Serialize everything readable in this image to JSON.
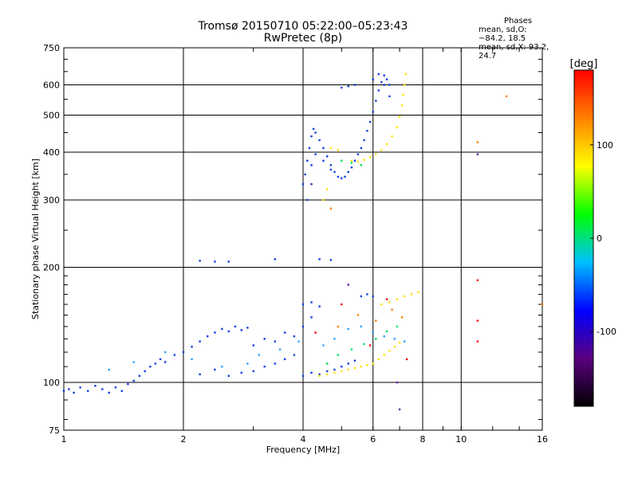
{
  "header": {
    "title_line1": "Tromsø 20150710 05:22:00–05:23:43",
    "title_line2": "RwPretec (8p)"
  },
  "phases": {
    "title": "Phases",
    "line_o": "mean, sd,O: −84.2, 18.5",
    "line_x": "mean, sd,X:  93.2, 24.7"
  },
  "chart_data": {
    "type": "scatter",
    "xlabel": "Frequency [MHz]",
    "ylabel": "Stationary phase Virtual Height [km]",
    "x_scale": "log",
    "y_scale": "log",
    "xlim": [
      1,
      16
    ],
    "ylim": [
      75,
      750
    ],
    "x_ticks": [
      1,
      2,
      4,
      6,
      8,
      10,
      16
    ],
    "x_tick_labels": [
      "1",
      "2",
      "4",
      "6",
      "8",
      "10",
      "16"
    ],
    "y_ticks": [
      75,
      100,
      200,
      300,
      400,
      500,
      600,
      750
    ],
    "y_tick_labels": [
      "75",
      "100",
      "200",
      "300",
      "400",
      "500",
      "600",
      "750"
    ],
    "grid": true,
    "colorbar": {
      "label": "[deg]",
      "range": [
        -180,
        180
      ],
      "ticks": [
        100,
        0,
        -100
      ],
      "tick_labels": [
        "100",
        "0",
        "-100"
      ],
      "colors": [
        "#000000",
        "#5a0080",
        "#0000ff",
        "#00c0ff",
        "#00ff00",
        "#ffff00",
        "#ff8000",
        "#ff0000"
      ]
    },
    "series": [
      {
        "color": "#1040e0",
        "points": [
          [
            1.0,
            95
          ],
          [
            1.03,
            96
          ],
          [
            1.06,
            94
          ],
          [
            1.1,
            97
          ],
          [
            1.15,
            95
          ],
          [
            1.2,
            98
          ],
          [
            1.25,
            96
          ],
          [
            1.3,
            94
          ],
          [
            1.35,
            97
          ],
          [
            1.4,
            95
          ],
          [
            1.45,
            99
          ],
          [
            1.5,
            101
          ],
          [
            1.55,
            104
          ],
          [
            1.6,
            107
          ],
          [
            1.65,
            110
          ],
          [
            1.7,
            112
          ],
          [
            1.75,
            115
          ],
          [
            1.8,
            113
          ],
          [
            1.9,
            118
          ],
          [
            2.0,
            120
          ],
          [
            2.1,
            124
          ],
          [
            2.2,
            128
          ],
          [
            2.3,
            132
          ],
          [
            2.4,
            135
          ],
          [
            2.5,
            138
          ],
          [
            2.6,
            136
          ],
          [
            2.7,
            140
          ],
          [
            2.8,
            137
          ],
          [
            2.9,
            139
          ],
          [
            2.2,
            105
          ],
          [
            2.4,
            108
          ],
          [
            2.6,
            104
          ],
          [
            2.8,
            106
          ],
          [
            3.0,
            107
          ],
          [
            3.2,
            110
          ],
          [
            3.4,
            112
          ],
          [
            3.6,
            115
          ],
          [
            3.8,
            118
          ],
          [
            4.0,
            104
          ],
          [
            4.2,
            106
          ],
          [
            4.4,
            105
          ],
          [
            4.6,
            107
          ],
          [
            4.8,
            108
          ],
          [
            5.0,
            110
          ],
          [
            5.2,
            112
          ],
          [
            5.4,
            114
          ],
          [
            3.0,
            125
          ],
          [
            3.2,
            130
          ],
          [
            3.4,
            128
          ],
          [
            3.6,
            135
          ],
          [
            3.8,
            132
          ],
          [
            4.0,
            140
          ],
          [
            4.2,
            148
          ],
          [
            4.4,
            158
          ],
          [
            4.2,
            162
          ],
          [
            4.0,
            160
          ],
          [
            5.6,
            168
          ],
          [
            5.8,
            170
          ],
          [
            6.0,
            168
          ],
          [
            2.2,
            208
          ],
          [
            2.4,
            207
          ],
          [
            2.6,
            207
          ],
          [
            3.4,
            210
          ],
          [
            4.4,
            210
          ],
          [
            4.7,
            209
          ]
        ]
      },
      {
        "color": "#1040e0",
        "points": [
          [
            4.0,
            330
          ],
          [
            4.05,
            350
          ],
          [
            4.1,
            380
          ],
          [
            4.15,
            410
          ],
          [
            4.2,
            440
          ],
          [
            4.25,
            460
          ],
          [
            4.3,
            450
          ],
          [
            4.4,
            430
          ],
          [
            4.5,
            410
          ],
          [
            4.6,
            390
          ],
          [
            4.7,
            370
          ],
          [
            4.8,
            355
          ],
          [
            4.9,
            345
          ],
          [
            5.0,
            342
          ],
          [
            5.1,
            345
          ],
          [
            5.2,
            355
          ],
          [
            5.3,
            365
          ],
          [
            5.4,
            380
          ],
          [
            5.5,
            395
          ],
          [
            5.6,
            410
          ],
          [
            5.7,
            430
          ],
          [
            5.8,
            455
          ],
          [
            5.9,
            480
          ],
          [
            6.0,
            510
          ],
          [
            6.1,
            545
          ],
          [
            6.2,
            580
          ],
          [
            6.3,
            610
          ],
          [
            6.4,
            635
          ],
          [
            6.5,
            620
          ],
          [
            6.6,
            600
          ],
          [
            5.0,
            590
          ],
          [
            5.2,
            595
          ],
          [
            5.4,
            600
          ],
          [
            4.1,
            300
          ],
          [
            4.2,
            370
          ],
          [
            4.3,
            395
          ],
          [
            4.5,
            380
          ],
          [
            4.7,
            360
          ],
          [
            6.0,
            620
          ],
          [
            6.2,
            640
          ],
          [
            6.4,
            600
          ],
          [
            6.6,
            560
          ]
        ]
      },
      {
        "color": "#30a0ff",
        "points": [
          [
            1.3,
            108
          ],
          [
            1.5,
            113
          ],
          [
            1.8,
            120
          ],
          [
            2.1,
            115
          ],
          [
            2.5,
            110
          ],
          [
            2.9,
            112
          ],
          [
            3.1,
            118
          ],
          [
            3.5,
            122
          ],
          [
            3.9,
            128
          ],
          [
            4.5,
            125
          ],
          [
            4.8,
            130
          ],
          [
            5.2,
            138
          ],
          [
            5.6,
            140
          ],
          [
            6.0,
            135
          ],
          [
            6.4,
            132
          ],
          [
            6.8,
            130
          ],
          [
            7.2,
            128
          ]
        ]
      },
      {
        "color": "#00e060",
        "points": [
          [
            4.6,
            112
          ],
          [
            4.9,
            118
          ],
          [
            5.3,
            122
          ],
          [
            5.7,
            126
          ],
          [
            6.1,
            130
          ],
          [
            6.5,
            136
          ],
          [
            6.9,
            140
          ],
          [
            5.0,
            380
          ],
          [
            5.3,
            375
          ],
          [
            5.6,
            370
          ]
        ]
      },
      {
        "color": "#ffe000",
        "points": [
          [
            4.4,
            104
          ],
          [
            4.6,
            105
          ],
          [
            4.8,
            106
          ],
          [
            5.0,
            107
          ],
          [
            5.2,
            108
          ],
          [
            5.4,
            109
          ],
          [
            5.6,
            110
          ],
          [
            5.8,
            111
          ],
          [
            6.0,
            112
          ],
          [
            6.2,
            115
          ],
          [
            6.4,
            118
          ],
          [
            6.6,
            121
          ],
          [
            6.8,
            124
          ],
          [
            7.0,
            127
          ],
          [
            6.3,
            160
          ],
          [
            6.6,
            162
          ],
          [
            6.9,
            165
          ],
          [
            7.2,
            168
          ],
          [
            7.5,
            170
          ],
          [
            7.8,
            172
          ],
          [
            5.3,
            380
          ],
          [
            5.5,
            378
          ],
          [
            5.7,
            382
          ],
          [
            5.9,
            388
          ],
          [
            6.1,
            395
          ],
          [
            6.3,
            405
          ],
          [
            6.5,
            420
          ],
          [
            6.7,
            440
          ],
          [
            6.9,
            465
          ],
          [
            7.0,
            495
          ],
          [
            7.1,
            530
          ],
          [
            7.15,
            565
          ],
          [
            7.2,
            600
          ],
          [
            7.25,
            640
          ],
          [
            4.7,
            410
          ],
          [
            4.9,
            405
          ],
          [
            4.6,
            320
          ],
          [
            4.5,
            300
          ]
        ]
      },
      {
        "color": "#ff8000",
        "points": [
          [
            4.9,
            140
          ],
          [
            5.5,
            150
          ],
          [
            6.1,
            145
          ],
          [
            6.7,
            155
          ],
          [
            7.1,
            148
          ],
          [
            4.7,
            285
          ],
          [
            13.0,
            560
          ],
          [
            11.0,
            425
          ],
          [
            16.0,
            160
          ]
        ]
      },
      {
        "color": "#ff0000",
        "points": [
          [
            4.3,
            135
          ],
          [
            5.0,
            160
          ],
          [
            5.9,
            125
          ],
          [
            6.5,
            165
          ],
          [
            7.3,
            115
          ],
          [
            11.0,
            185
          ],
          [
            11.0,
            145
          ],
          [
            11.0,
            128
          ]
        ]
      },
      {
        "color": "#6020a0",
        "points": [
          [
            5.2,
            180
          ],
          [
            7.0,
            85
          ],
          [
            6.9,
            100
          ],
          [
            11.0,
            395
          ],
          [
            4.2,
            330
          ]
        ]
      }
    ]
  }
}
